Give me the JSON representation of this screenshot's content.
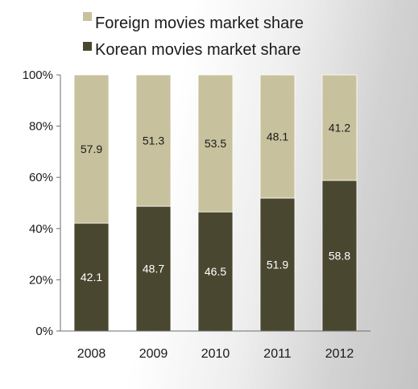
{
  "chart_data": {
    "type": "bar",
    "stacked": true,
    "categories": [
      "2008",
      "2009",
      "2010",
      "2011",
      "2012"
    ],
    "series": [
      {
        "name": "Korean movies market share",
        "values": [
          42.1,
          48.7,
          46.5,
          51.9,
          58.8
        ],
        "color": "#4a4730",
        "label_color": "#ffffff"
      },
      {
        "name": "Foreign movies market share",
        "values": [
          57.9,
          51.3,
          53.5,
          48.1,
          41.2
        ],
        "color": "#c7c19d",
        "label_color": "#1a1a1a"
      }
    ],
    "legend_order": [
      1,
      0
    ],
    "legend_position": "top",
    "y_ticks": [
      "0%",
      "20%",
      "40%",
      "60%",
      "80%",
      "100%"
    ],
    "ylim": [
      0,
      100
    ],
    "grid": false,
    "title": "",
    "xlabel": "",
    "ylabel": ""
  }
}
